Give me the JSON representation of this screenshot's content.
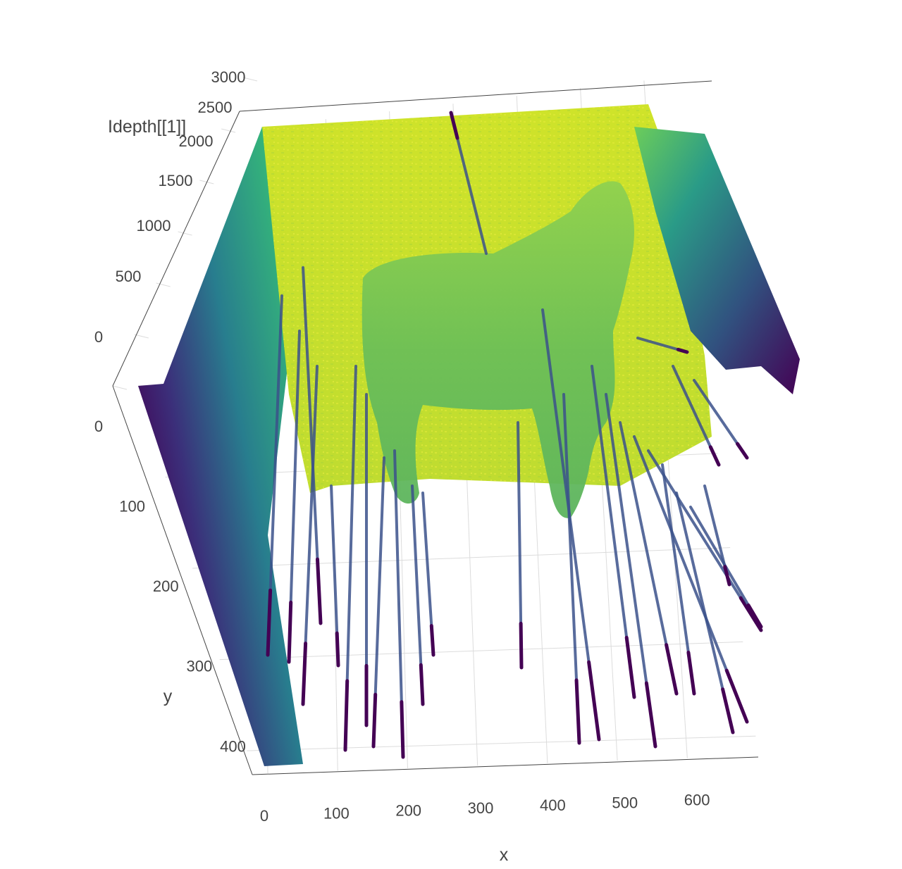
{
  "chart_data": {
    "type": "surface",
    "title": "",
    "subtitle": "",
    "xlabel": "x",
    "ylabel": "y",
    "zlabel": "Idepth[[1]]",
    "x_ticks": [
      "0",
      "100",
      "200",
      "300",
      "400",
      "500",
      "600"
    ],
    "y_ticks": [
      "0",
      "100",
      "200",
      "300",
      "400"
    ],
    "z_ticks": [
      "0",
      "500",
      "1000",
      "1500",
      "2000",
      "2500",
      "3000"
    ],
    "xlim": [
      0,
      640
    ],
    "ylim": [
      0,
      420
    ],
    "zlim": [
      0,
      3000
    ],
    "colorscale": "viridis",
    "colors": {
      "low": "#440154",
      "mid_low": "#31688e",
      "mid": "#35b779",
      "high": "#b8de29",
      "top": "#d4e22a"
    },
    "grid": true,
    "legend": "none",
    "surface_levels": {
      "background_plane_depth": 2500,
      "subject_depth": 1800,
      "missing_depth": 0
    }
  }
}
